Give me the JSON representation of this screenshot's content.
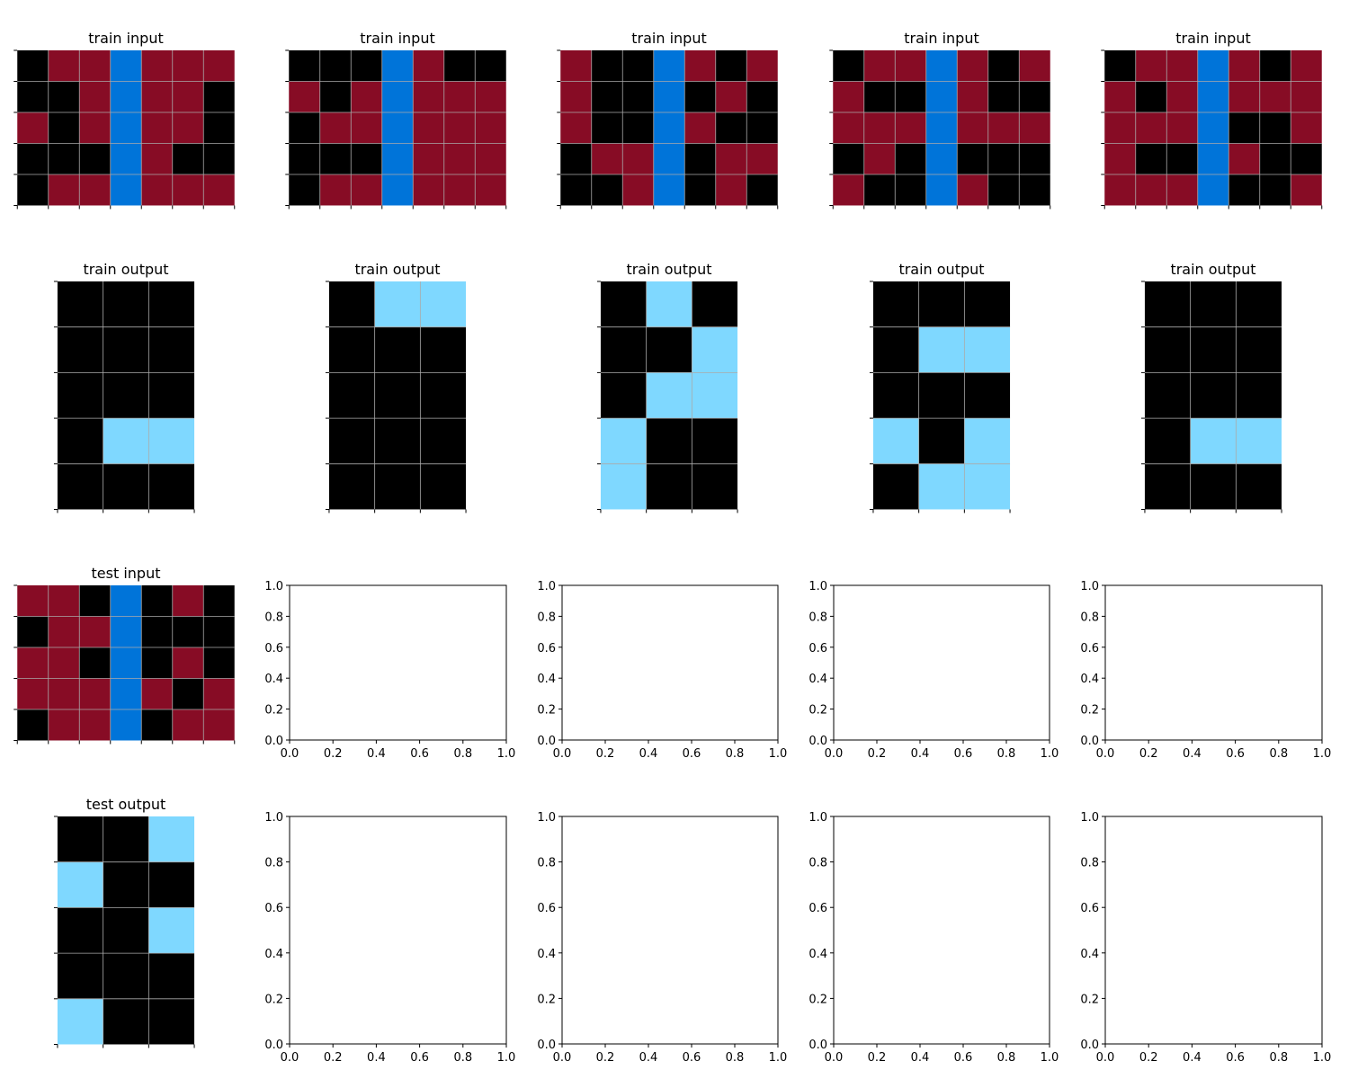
{
  "palette": {
    "0": "#000000",
    "8": "#87CEEB",
    "9": "#870C25",
    "1": "#0074D9",
    "grid_line": "#aaaaaa"
  },
  "display_colors": {
    "0": "#000000",
    "9": "#870c25",
    "1": "#0074d9",
    "8": "#7fd8ff"
  },
  "panels": [
    {
      "title": "train input",
      "grid": [
        [
          0,
          9,
          9,
          1,
          9,
          9,
          9
        ],
        [
          0,
          0,
          9,
          1,
          9,
          9,
          0
        ],
        [
          9,
          0,
          9,
          1,
          9,
          9,
          0
        ],
        [
          0,
          0,
          0,
          1,
          9,
          0,
          0
        ],
        [
          0,
          9,
          9,
          1,
          9,
          9,
          9
        ]
      ]
    },
    {
      "title": "train input",
      "grid": [
        [
          0,
          0,
          0,
          1,
          9,
          0,
          0
        ],
        [
          9,
          0,
          9,
          1,
          9,
          9,
          9
        ],
        [
          0,
          9,
          9,
          1,
          9,
          9,
          9
        ],
        [
          0,
          0,
          0,
          1,
          9,
          9,
          9
        ],
        [
          0,
          9,
          9,
          1,
          9,
          9,
          9
        ]
      ]
    },
    {
      "title": "train input",
      "grid": [
        [
          9,
          0,
          0,
          1,
          9,
          0,
          9
        ],
        [
          9,
          0,
          0,
          1,
          0,
          9,
          0
        ],
        [
          9,
          0,
          0,
          1,
          9,
          0,
          0
        ],
        [
          0,
          9,
          9,
          1,
          0,
          9,
          9
        ],
        [
          0,
          0,
          9,
          1,
          0,
          9,
          0
        ]
      ]
    },
    {
      "title": "train input",
      "grid": [
        [
          0,
          9,
          9,
          1,
          9,
          0,
          9
        ],
        [
          9,
          0,
          0,
          1,
          9,
          0,
          0
        ],
        [
          9,
          9,
          9,
          1,
          9,
          9,
          9
        ],
        [
          0,
          9,
          0,
          1,
          0,
          0,
          0
        ],
        [
          9,
          0,
          0,
          1,
          9,
          0,
          0
        ]
      ]
    },
    {
      "title": "train input",
      "grid": [
        [
          0,
          9,
          9,
          1,
          9,
          0,
          9
        ],
        [
          9,
          0,
          9,
          1,
          9,
          9,
          9
        ],
        [
          9,
          9,
          9,
          1,
          0,
          0,
          9
        ],
        [
          9,
          0,
          0,
          1,
          9,
          0,
          0
        ],
        [
          9,
          9,
          9,
          1,
          0,
          0,
          9
        ]
      ]
    },
    {
      "title": "train output",
      "grid": [
        [
          0,
          0,
          0
        ],
        [
          0,
          0,
          0
        ],
        [
          0,
          0,
          0
        ],
        [
          0,
          8,
          8
        ],
        [
          0,
          0,
          0
        ]
      ]
    },
    {
      "title": "train output",
      "grid": [
        [
          0,
          8,
          8
        ],
        [
          0,
          0,
          0
        ],
        [
          0,
          0,
          0
        ],
        [
          0,
          0,
          0
        ],
        [
          0,
          0,
          0
        ]
      ]
    },
    {
      "title": "train output",
      "grid": [
        [
          0,
          8,
          0
        ],
        [
          0,
          0,
          8
        ],
        [
          0,
          8,
          8
        ],
        [
          8,
          0,
          0
        ],
        [
          8,
          0,
          0
        ]
      ]
    },
    {
      "title": "train output",
      "grid": [
        [
          0,
          0,
          0
        ],
        [
          0,
          8,
          8
        ],
        [
          0,
          0,
          0
        ],
        [
          8,
          0,
          8
        ],
        [
          0,
          8,
          8
        ]
      ]
    },
    {
      "title": "train output",
      "grid": [
        [
          0,
          0,
          0
        ],
        [
          0,
          0,
          0
        ],
        [
          0,
          0,
          0
        ],
        [
          0,
          8,
          8
        ],
        [
          0,
          0,
          0
        ]
      ]
    },
    {
      "title": "test input",
      "grid": [
        [
          9,
          9,
          0,
          1,
          0,
          9,
          0
        ],
        [
          0,
          9,
          9,
          1,
          0,
          0,
          0
        ],
        [
          9,
          9,
          0,
          1,
          0,
          9,
          0
        ],
        [
          9,
          9,
          9,
          1,
          9,
          0,
          9
        ],
        [
          0,
          9,
          9,
          1,
          0,
          9,
          9
        ]
      ]
    },
    {
      "title": "test output",
      "grid": [
        [
          0,
          0,
          8
        ],
        [
          8,
          0,
          0
        ],
        [
          0,
          0,
          8
        ],
        [
          0,
          0,
          0
        ],
        [
          8,
          0,
          0
        ]
      ]
    }
  ],
  "empty_axes": {
    "ticks": [
      "0.0",
      "0.2",
      "0.4",
      "0.6",
      "0.8",
      "1.0"
    ]
  }
}
